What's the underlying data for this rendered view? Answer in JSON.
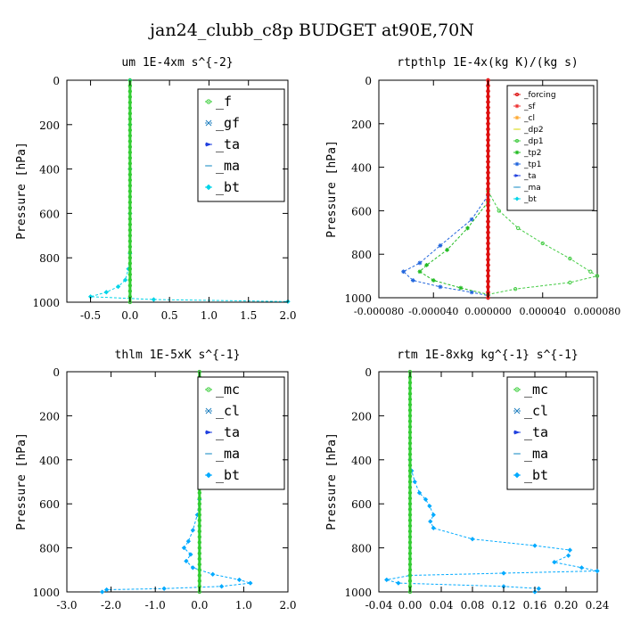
{
  "figure_title": "jan24_clubb_c8p  BUDGET at90E,70N",
  "chart_data": [
    {
      "type": "line",
      "title": "um  1E-4xm s^{-2}",
      "ylabel": "Pressure [hPa]",
      "xlim": [
        -0.8,
        2.0
      ],
      "ylim": [
        1000,
        0
      ],
      "xticks": [
        -0.5,
        0.0,
        0.5,
        1.0,
        1.5,
        2.0
      ],
      "xtick_labels": [
        "-0.5",
        "0.0",
        "0.5",
        "1.0",
        "1.5",
        "2.0"
      ],
      "yticks": [
        0,
        200,
        400,
        600,
        800,
        1000
      ],
      "legend": "top-right",
      "series": [
        {
          "name": "_f",
          "color": "#33cc33",
          "marker": "circle",
          "points": [
            [
              0,
              0
            ],
            [
              0,
              100
            ],
            [
              0,
              200
            ],
            [
              0,
              300
            ],
            [
              0,
              400
            ],
            [
              0,
              500
            ],
            [
              0,
              600
            ],
            [
              0,
              700
            ],
            [
              0,
              800
            ],
            [
              0,
              900
            ],
            [
              0,
              950
            ],
            [
              0,
              975
            ],
            [
              0,
              990
            ],
            [
              0,
              1000
            ]
          ]
        },
        {
          "name": "_gf",
          "color": "#1f7fbf",
          "marker": "x",
          "points": []
        },
        {
          "name": "_ta",
          "color": "#1f3fdf",
          "marker": "arrow",
          "points": []
        },
        {
          "name": "_ma",
          "color": "#3399cc",
          "marker": "dash",
          "points": []
        },
        {
          "name": "_bt",
          "color": "#00d4e8",
          "marker": "diamond",
          "points": [
            [
              0,
              0
            ],
            [
              0,
              200
            ],
            [
              0,
              400
            ],
            [
              0,
              600
            ],
            [
              0,
              780
            ],
            [
              -0.02,
              850
            ],
            [
              -0.06,
              900
            ],
            [
              -0.15,
              930
            ],
            [
              -0.3,
              955
            ],
            [
              -0.5,
              975
            ],
            [
              0.3,
              988
            ],
            [
              2.0,
              997
            ]
          ]
        }
      ]
    },
    {
      "type": "line",
      "title": "rtpthlp  1E-4x(kg K)/(kg s)",
      "ylabel": "Pressure [hPa]",
      "xlim": [
        -8e-05,
        8e-05
      ],
      "ylim": [
        1000,
        0
      ],
      "xticks": [
        -8e-05,
        -4e-05,
        0.0,
        4e-05,
        8e-05
      ],
      "xtick_labels": [
        "-0.000080",
        "-0.000040",
        "0.000000",
        "0.000040",
        "0.000080"
      ],
      "yticks": [
        0,
        200,
        400,
        600,
        800,
        1000
      ],
      "legend": "top-right",
      "series": [
        {
          "name": "_forcing",
          "color": "#dd1111",
          "marker": "circle",
          "points": [
            [
              0,
              0
            ],
            [
              0,
              100
            ],
            [
              0,
              200
            ],
            [
              0,
              300
            ],
            [
              0,
              400
            ],
            [
              0,
              500
            ],
            [
              0,
              600
            ],
            [
              0,
              700
            ],
            [
              0,
              800
            ],
            [
              0,
              900
            ],
            [
              0,
              1000
            ]
          ]
        },
        {
          "name": "_sf",
          "color": "#ee3333",
          "marker": "star",
          "points": [
            [
              0,
              0
            ],
            [
              0,
              500
            ],
            [
              0,
              1000
            ]
          ]
        },
        {
          "name": "_cl",
          "color": "#ffaa33",
          "marker": "star",
          "points": []
        },
        {
          "name": "_dp2",
          "color": "#dddd22",
          "marker": "dash",
          "points": []
        },
        {
          "name": "_dp1",
          "color": "#44cc44",
          "marker": "circle",
          "points": [
            [
              0,
              510
            ],
            [
              8e-06,
              600
            ],
            [
              2.2e-05,
              680
            ],
            [
              4e-05,
              750
            ],
            [
              6e-05,
              820
            ],
            [
              7.5e-05,
              880
            ],
            [
              8e-05,
              900
            ],
            [
              6e-05,
              930
            ],
            [
              2e-05,
              960
            ],
            [
              0,
              985
            ]
          ]
        },
        {
          "name": "_tp2",
          "color": "#22bb22",
          "marker": "star",
          "points": [
            [
              0,
              560
            ],
            [
              -1.5e-05,
              680
            ],
            [
              -3e-05,
              780
            ],
            [
              -4.5e-05,
              850
            ],
            [
              -5e-05,
              880
            ],
            [
              -4e-05,
              920
            ],
            [
              -2e-05,
              955
            ],
            [
              0,
              985
            ]
          ]
        },
        {
          "name": "_tp1",
          "color": "#2266dd",
          "marker": "star",
          "points": [
            [
              0,
              530
            ],
            [
              -1.2e-05,
              640
            ],
            [
              -3.5e-05,
              760
            ],
            [
              -5e-05,
              840
            ],
            [
              -6.2e-05,
              880
            ],
            [
              -5.5e-05,
              920
            ],
            [
              -3.5e-05,
              950
            ],
            [
              -1.2e-05,
              975
            ],
            [
              0,
              990
            ]
          ]
        },
        {
          "name": "_ta",
          "color": "#1f3fdf",
          "marker": "arrow",
          "points": []
        },
        {
          "name": "_ma",
          "color": "#3399cc",
          "marker": "dash",
          "points": []
        },
        {
          "name": "_bt",
          "color": "#00d4e8",
          "marker": "diamond",
          "points": []
        }
      ]
    },
    {
      "type": "line",
      "title": "thlm  1E-5xK s^{-1}",
      "ylabel": "Pressure [hPa]",
      "xlim": [
        -3.0,
        2.0
      ],
      "ylim": [
        1000,
        0
      ],
      "xticks": [
        -3.0,
        -2.0,
        -1.0,
        0.0,
        1.0,
        2.0
      ],
      "xtick_labels": [
        "-3.0",
        "-2.0",
        "-1.0",
        "0.0",
        "1.0",
        "2.0"
      ],
      "yticks": [
        0,
        200,
        400,
        600,
        800,
        1000
      ],
      "legend": "top-right",
      "series": [
        {
          "name": "_mc",
          "color": "#33cc33",
          "marker": "circle",
          "points": [
            [
              0,
              0
            ],
            [
              0,
              100
            ],
            [
              0,
              200
            ],
            [
              0,
              300
            ],
            [
              0,
              400
            ],
            [
              0,
              500
            ],
            [
              0,
              600
            ],
            [
              0,
              700
            ],
            [
              0,
              800
            ],
            [
              0,
              900
            ],
            [
              0,
              1000
            ]
          ]
        },
        {
          "name": "_cl",
          "color": "#1f7fbf",
          "marker": "x",
          "points": []
        },
        {
          "name": "_ta",
          "color": "#1f3fdf",
          "marker": "arrow",
          "points": []
        },
        {
          "name": "_ma",
          "color": "#3399cc",
          "marker": "dash",
          "points": []
        },
        {
          "name": "_bt",
          "color": "#00aaff",
          "marker": "diamond",
          "points": [
            [
              0,
              580
            ],
            [
              -0.05,
              650
            ],
            [
              -0.15,
              720
            ],
            [
              -0.25,
              770
            ],
            [
              -0.35,
              800
            ],
            [
              -0.2,
              830
            ],
            [
              -0.3,
              860
            ],
            [
              -0.15,
              890
            ],
            [
              0.3,
              920
            ],
            [
              0.9,
              945
            ],
            [
              1.15,
              960
            ],
            [
              0.5,
              975
            ],
            [
              -0.8,
              985
            ],
            [
              -2.1,
              990
            ],
            [
              -2.2,
              1000
            ]
          ]
        }
      ]
    },
    {
      "type": "line",
      "title": "rtm  1E-8xkg kg^{-1} s^{-1}",
      "ylabel": "Pressure [hPa]",
      "xlim": [
        -0.04,
        0.24
      ],
      "ylim": [
        1000,
        0
      ],
      "xticks": [
        -0.04,
        0.0,
        0.04,
        0.08,
        0.12,
        0.16,
        0.2,
        0.24
      ],
      "xtick_labels": [
        "-0.04",
        "0.00",
        "0.04",
        "0.08",
        "0.12",
        "0.16",
        "0.20",
        "0.24"
      ],
      "yticks": [
        0,
        200,
        400,
        600,
        800,
        1000
      ],
      "legend": "top-right",
      "series": [
        {
          "name": "_mc",
          "color": "#33cc33",
          "marker": "circle",
          "points": [
            [
              0,
              0
            ],
            [
              0,
              100
            ],
            [
              0,
              200
            ],
            [
              0,
              300
            ],
            [
              0,
              400
            ],
            [
              0,
              500
            ],
            [
              0,
              600
            ],
            [
              0,
              700
            ],
            [
              0,
              800
            ],
            [
              0,
              900
            ],
            [
              0,
              1000
            ]
          ]
        },
        {
          "name": "_cl",
          "color": "#1f7fbf",
          "marker": "x",
          "points": []
        },
        {
          "name": "_ta",
          "color": "#1f3fdf",
          "marker": "arrow",
          "points": []
        },
        {
          "name": "_ma",
          "color": "#3399cc",
          "marker": "dash",
          "points": []
        },
        {
          "name": "_bt",
          "color": "#00aaff",
          "marker": "diamond",
          "points": [
            [
              0,
              400
            ],
            [
              0.002,
              450
            ],
            [
              0.006,
              500
            ],
            [
              0.012,
              550
            ],
            [
              0.02,
              580
            ],
            [
              0.025,
              610
            ],
            [
              0.03,
              650
            ],
            [
              0.026,
              680
            ],
            [
              0.03,
              710
            ],
            [
              0.08,
              760
            ],
            [
              0.16,
              790
            ],
            [
              0.205,
              810
            ],
            [
              0.203,
              835
            ],
            [
              0.185,
              865
            ],
            [
              0.22,
              890
            ],
            [
              0.24,
              905
            ],
            [
              0.12,
              915
            ],
            [
              0.0,
              925
            ],
            [
              -0.03,
              945
            ],
            [
              -0.015,
              960
            ],
            [
              0.12,
              975
            ],
            [
              0.165,
              985
            ],
            [
              0.16,
              1000
            ]
          ]
        }
      ]
    }
  ]
}
